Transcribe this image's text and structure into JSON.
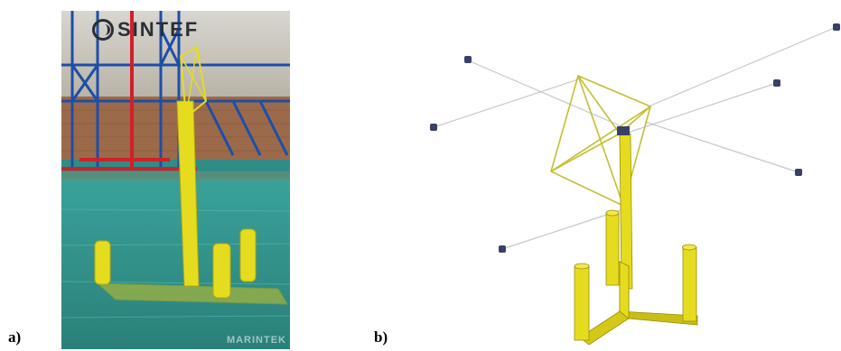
{
  "labels": {
    "a": "a)",
    "b": "b)"
  },
  "photo": {
    "logo_text": "SINTEF",
    "watermark_text": "MARINTEK"
  },
  "colors": {
    "structure_yellow": "#e6dc1f",
    "structure_shadow": "#b5a80f",
    "water": "#2f8d86",
    "mooring_line": "#c8c8c8",
    "frame_line": "#c2bf33",
    "anchor": "#3a3f66"
  }
}
